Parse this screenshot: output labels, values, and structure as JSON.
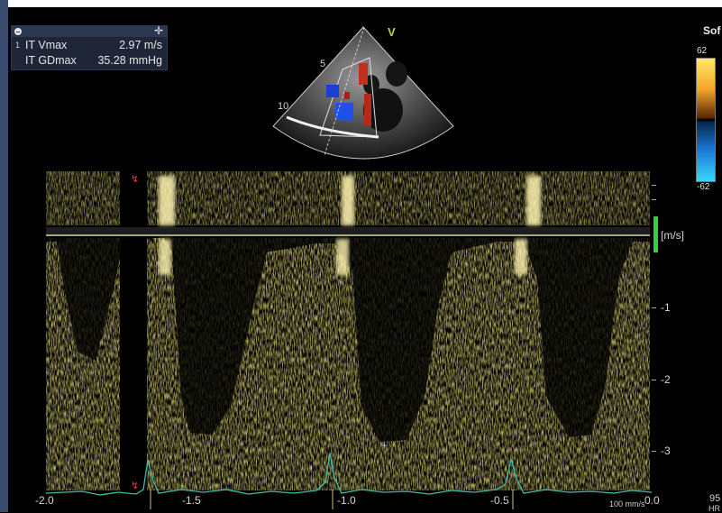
{
  "measurements": {
    "rows": [
      {
        "index": "1",
        "label": "IT Vmax",
        "value": "2.97 m/s"
      },
      {
        "index": "",
        "label": "IT GDmax",
        "value": "35.28 mmHg"
      }
    ]
  },
  "echo": {
    "marker": "V",
    "depth_labels": [
      "5",
      "10"
    ]
  },
  "header_right": {
    "text": "Sof"
  },
  "colorbar": {
    "top": "62",
    "bottom": "-62"
  },
  "doppler": {
    "unit": "[m/s]",
    "y_ticks": [
      "-1",
      "-2",
      "-3"
    ],
    "x_ticks": [
      "-2.0",
      "-1.5",
      "-1.0",
      "-0.5",
      "0.0"
    ],
    "sweep_speed": "100 mm/s",
    "hr_value": "95",
    "hr_label": "HR",
    "cursor": "+"
  },
  "colors": {
    "doppler": "#e8d23a",
    "ecg": "#3fbfa8",
    "colorbar_pos": "#f5a52a",
    "colorbar_neg": "#1a7ad8"
  }
}
